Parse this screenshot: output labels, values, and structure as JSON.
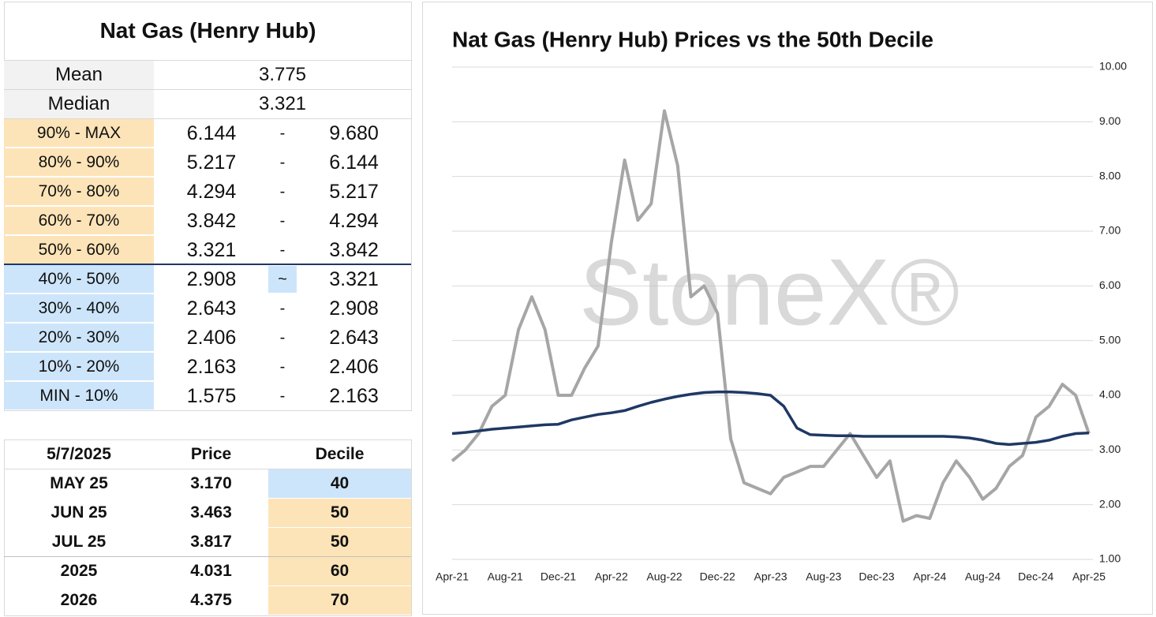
{
  "summary": {
    "title": "Nat Gas (Henry Hub)",
    "stats": [
      [
        "Mean",
        "3.775"
      ],
      [
        "Median",
        "3.321"
      ]
    ],
    "deciles": [
      [
        "90% - MAX",
        "6.144",
        "-",
        "9.680"
      ],
      [
        "80% - 90%",
        "5.217",
        "-",
        "6.144"
      ],
      [
        "70% - 80%",
        "4.294",
        "-",
        "5.217"
      ],
      [
        "60% - 70%",
        "3.842",
        "-",
        "4.294"
      ],
      [
        "50% - 60%",
        "3.321",
        "-",
        "3.842"
      ],
      [
        "40% - 50%",
        "2.908",
        "~",
        "3.321"
      ],
      [
        "30% - 40%",
        "2.643",
        "-",
        "2.908"
      ],
      [
        "20% - 30%",
        "2.406",
        "-",
        "2.643"
      ],
      [
        "10% - 20%",
        "2.163",
        "-",
        "2.406"
      ],
      [
        "MIN - 10%",
        "1.575",
        "-",
        "2.163"
      ]
    ]
  },
  "table": {
    "header": [
      "5/7/2025",
      "Price",
      "Decile"
    ],
    "rows": [
      [
        "MAY 25",
        "3.170",
        "40"
      ],
      [
        "JUN 25",
        "3.463",
        "50"
      ],
      [
        "JUL 25",
        "3.817",
        "50"
      ],
      [
        "2025",
        "4.031",
        "60"
      ],
      [
        "2026",
        "4.375",
        "70"
      ]
    ]
  },
  "chart_data": {
    "type": "line",
    "title": "Nat Gas (Henry Hub) Prices vs the 50th Decile",
    "watermark": "StoneX®",
    "categories": [
      "Apr-21",
      null,
      null,
      null,
      "Aug-21",
      null,
      null,
      null,
      "Dec-21",
      null,
      null,
      null,
      "Apr-22",
      null,
      null,
      null,
      "Aug-22",
      null,
      null,
      null,
      "Dec-22",
      null,
      null,
      null,
      "Apr-23",
      null,
      null,
      null,
      "Aug-23",
      null,
      null,
      null,
      "Dec-23",
      null,
      null,
      null,
      "Apr-24",
      null,
      null,
      null,
      "Aug-24",
      null,
      null,
      null,
      "Dec-24",
      null,
      null,
      null,
      "Apr-25"
    ],
    "series": [
      {
        "name": "Price",
        "color": "#a6a6a6",
        "values": [
          2.8,
          3.0,
          3.3,
          3.8,
          4.0,
          5.2,
          5.8,
          5.2,
          4.0,
          4.0,
          4.5,
          4.9,
          6.8,
          8.3,
          7.2,
          7.5,
          9.2,
          8.2,
          5.8,
          6.0,
          5.5,
          3.2,
          2.4,
          2.3,
          2.2,
          2.5,
          2.6,
          2.7,
          2.7,
          3.0,
          3.3,
          2.9,
          2.5,
          2.8,
          1.7,
          1.8,
          1.75,
          2.4,
          2.8,
          2.5,
          2.1,
          2.3,
          2.7,
          2.9,
          3.6,
          3.8,
          4.2,
          4.0,
          3.3
        ]
      },
      {
        "name": "50th Decile",
        "color": "#1f3864",
        "values": [
          3.3,
          3.32,
          3.35,
          3.38,
          3.4,
          3.42,
          3.44,
          3.46,
          3.47,
          3.55,
          3.6,
          3.65,
          3.68,
          3.72,
          3.8,
          3.87,
          3.93,
          3.98,
          4.02,
          4.05,
          4.06,
          4.06,
          4.05,
          4.03,
          4.0,
          3.8,
          3.4,
          3.28,
          3.27,
          3.26,
          3.26,
          3.25,
          3.25,
          3.25,
          3.25,
          3.25,
          3.25,
          3.25,
          3.24,
          3.22,
          3.18,
          3.12,
          3.1,
          3.12,
          3.14,
          3.18,
          3.25,
          3.3,
          3.31
        ]
      }
    ],
    "ylim": [
      1,
      10
    ],
    "yticks": [
      {
        "value": 1,
        "label": "1.00"
      },
      {
        "value": 2,
        "label": "2.00"
      },
      {
        "value": 3,
        "label": "3.00"
      },
      {
        "value": 4,
        "label": "4.00"
      },
      {
        "value": 5,
        "label": "5.00"
      },
      {
        "value": 6,
        "label": "6.00"
      },
      {
        "value": 7,
        "label": "7.00"
      },
      {
        "value": 8,
        "label": "8.00"
      },
      {
        "value": 9,
        "label": "9.00"
      },
      {
        "value": 10,
        "label": "10.00"
      }
    ],
    "grid": true
  }
}
